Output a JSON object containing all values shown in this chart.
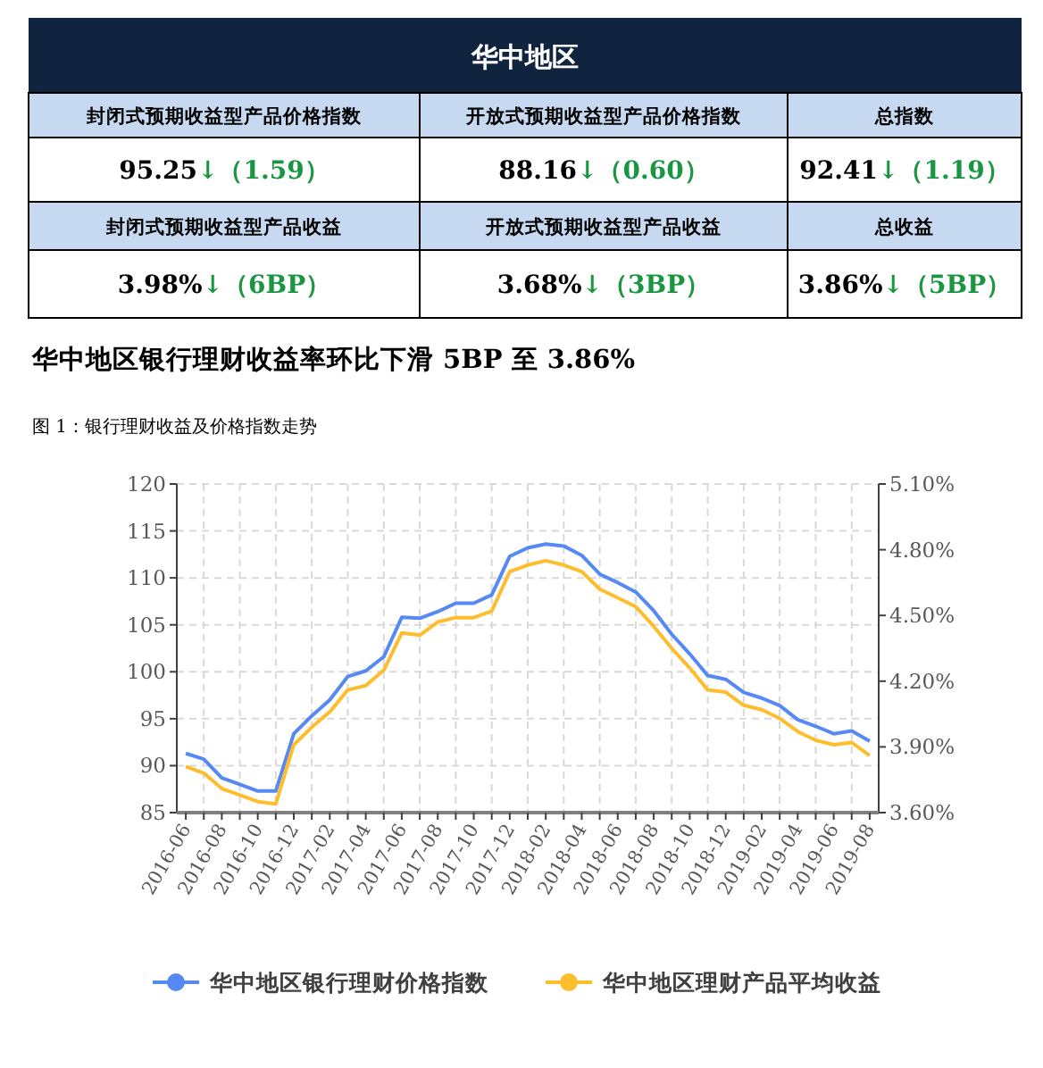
{
  "chart_data": [
    {
      "type": "other",
      "title": "华中地区",
      "annotations": [
        "封闭式预期收益型产品价格指数",
        "开放式预期收益型产品价格指数",
        "总指数",
        "95.25",
        "↓（1.59）",
        "88.16",
        "↓（0.60）",
        "92.41",
        "↓（1.19）",
        "封闭式预期收益型产品收益",
        "开放式预期收益型产品收益",
        "总收益",
        "3.98%",
        "↓（6BP）",
        "3.68%",
        "↓（3BP）",
        "3.86%",
        "↓（5BP）"
      ]
    },
    {
      "type": "line",
      "title": "华中地区银行理财收益率环比下滑 5BP 至 3.86%",
      "subtitle": "图 1：银行理财收益及价格指数走势",
      "categories": [
        "2016-06",
        null,
        "2016-08",
        null,
        "2016-10",
        null,
        "2016-12",
        null,
        "2017-02",
        null,
        "2017-04",
        null,
        "2017-06",
        null,
        "2017-08",
        null,
        "2017-10",
        null,
        "2017-12",
        null,
        "2018-02",
        null,
        "2018-04",
        null,
        "2018-06",
        null,
        "2018-08",
        null,
        "2018-10",
        null,
        "2018-12",
        null,
        "2019-02",
        null,
        "2019-04",
        null,
        "2019-06",
        null,
        "2019-08"
      ],
      "series": [
        {
          "name": "华中地区银行理财价格指数",
          "color": "#5689f4",
          "values": [
            91.3,
            90.7,
            88.7,
            88.0,
            87.3,
            87.3,
            93.4,
            95.3,
            97.0,
            99.5,
            100.1,
            101.6,
            105.8,
            105.7,
            106.4,
            107.3,
            107.3,
            108.2,
            112.3,
            113.2,
            113.6,
            113.4,
            112.4,
            110.4,
            109.5,
            108.5,
            106.5,
            104.0,
            101.9,
            99.6,
            99.2,
            97.8,
            97.2,
            96.4,
            94.9,
            94.2,
            93.4,
            93.7,
            92.6
          ]
        },
        {
          "name": "华中地区理财产品平均收益",
          "color": "#fdbd2c",
          "axis": "y2",
          "values": [
            3.81,
            3.78,
            3.71,
            3.68,
            3.65,
            3.64,
            3.91,
            3.99,
            4.06,
            4.16,
            4.18,
            4.25,
            4.42,
            4.41,
            4.47,
            4.49,
            4.49,
            4.52,
            4.7,
            4.73,
            4.75,
            4.73,
            4.7,
            4.62,
            4.58,
            4.54,
            4.45,
            4.35,
            4.26,
            4.16,
            4.15,
            4.09,
            4.07,
            4.03,
            3.97,
            3.93,
            3.91,
            3.92,
            3.86
          ]
        }
      ],
      "ylim": [
        85,
        120
      ],
      "yticks": [
        85,
        90,
        95,
        100,
        105,
        110,
        115,
        120
      ],
      "y2lim": [
        3.6,
        5.1
      ],
      "y2ticks": [
        {
          "value": 3.6,
          "label": "3.60%"
        },
        {
          "value": 3.9,
          "label": "3.90%"
        },
        {
          "value": 4.2,
          "label": "4.20%"
        },
        {
          "value": 4.5,
          "label": "4.50%"
        },
        {
          "value": 4.8,
          "label": "4.80%"
        },
        {
          "value": 5.1,
          "label": "5.10%"
        }
      ],
      "grid": true,
      "legend": "bottom"
    }
  ]
}
